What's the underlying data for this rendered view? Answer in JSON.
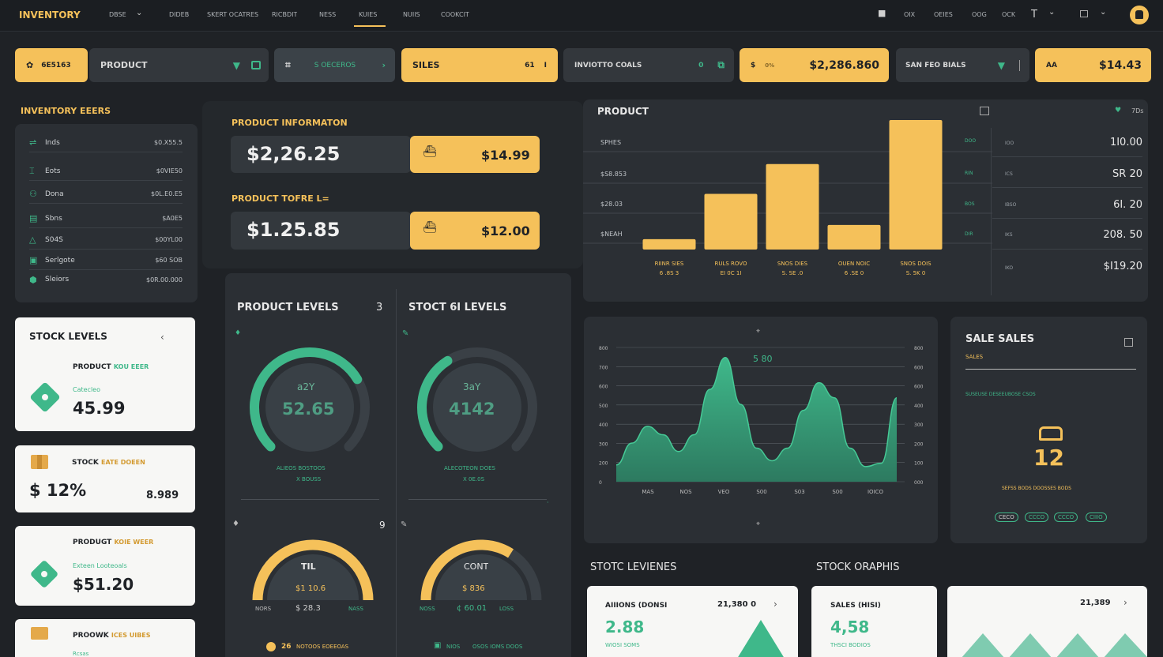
{
  "nav": {
    "brand": "INVENTORY",
    "items": [
      "DBSE",
      "DIDEB",
      "SKERT OCATRES",
      "RICBDIT",
      "NESS",
      "KUIES",
      "NUIIS",
      "COOKCIT"
    ],
    "right": [
      "OIX",
      "OEIES",
      "OOG",
      "OCK"
    ],
    "icons": {
      "lock": "lock-icon",
      "filter": "filter-icon",
      "window": "window-icon",
      "chevron": "chevron-down-icon",
      "avatar": "avatar-icon"
    }
  },
  "toolbar": {
    "chip1": "6E5163",
    "product": "PRODUCT",
    "search": "S OECEROS",
    "sales": "SILES",
    "sales_num": "61",
    "sales_mark": "I",
    "goals": "INVIOTTO COALS",
    "goals_num": "0",
    "currency_label": "$",
    "currency_sub": "0%",
    "amount": "$2,286.860",
    "fiscal": "SAN FEO BIALS",
    "last_label": "AA",
    "last_amount": "$14.43"
  },
  "inventory": {
    "title": "INVENTORY EEERS",
    "rows": [
      {
        "label": "Inds",
        "value": "$0.X55.5"
      },
      {
        "label": "Eots",
        "value": "$0VIE50"
      },
      {
        "label": "Dona",
        "value": "$0L.E0.E5"
      },
      {
        "label": "Sbns",
        "value": "$A0E5"
      },
      {
        "label": "S04S",
        "value": "$00YL00"
      },
      {
        "label": "Serlgote",
        "value": "$60 SOB"
      },
      {
        "label": "Sleiors",
        "value": "$0R.00.000"
      }
    ]
  },
  "stock_card": {
    "title": "STOCK LEVELS",
    "arrow": "‹",
    "product": "PRODUCT",
    "product_sub": "KOU EEER",
    "label": "Catecleo",
    "value": "45.99"
  },
  "stock_pct": {
    "label": "STOCK",
    "label_sub": "EATE DOEEN",
    "value": "$ 12%",
    "right": "8.989"
  },
  "product_card": {
    "title": "PRODUGT",
    "title_sub": "KOIE WEER",
    "label": "Exteen",
    "label_sub": "Looteoals",
    "value": "$51.20"
  },
  "product_card2": {
    "title": "PROOWK",
    "title_sub": "ICES UIBES",
    "sub": "Rcsas"
  },
  "product_info": {
    "title": "PRODUCT INFORMATON",
    "amount1": "$2,26.25",
    "chip1": "$14.99",
    "title2": "PRODUCT TOFRE L=",
    "amount2": "$1.25.85",
    "chip2": "$12.00"
  },
  "gauges": {
    "title1": "PRODUCT LEVELS",
    "title1_num": "3",
    "title2": "STOCT 6I LEVELS",
    "g1": {
      "label": "a2Y",
      "value": "52.65",
      "sub": "ALIEOS BOSTOOS",
      "sub2": "X BOUSS",
      "pct": 0.72
    },
    "g2": {
      "label": "3aY",
      "value": "4142",
      "sub": "ALECOTEON DOES",
      "sub2": "X 0E.0S",
      "pct": 0.38
    },
    "g3": {
      "label": "TIL",
      "value": "$1 10.6",
      "left": "NORS",
      "mid": "$ 28.3",
      "right": "NASS",
      "corner": "9",
      "pct": 0.5
    },
    "g4": {
      "label": "CONT",
      "value": "$ 836",
      "left": "NOSS",
      "mid": "¢ 60.01",
      "right": "LOSS",
      "pct": 0.68
    },
    "footer1_num": "26",
    "footer1": "NOTOOS EOEEOAS",
    "footer2": "NIOS",
    "footer2b": "OSOS IOMS DOOS"
  },
  "product_chart": {
    "title": "PRODUCT",
    "legend": "7Ds",
    "row_labels": [
      "SPHES",
      "$S8.853",
      "$28.03",
      "$NEAH"
    ],
    "right_values": [
      "1I0.00",
      "SR 20",
      "6I. 20",
      "208. 50"
    ],
    "right_last": "$I19.20",
    "right_codes": [
      "DOO",
      "RIN",
      "BOS",
      "DIR"
    ],
    "right_mid": [
      "IOO",
      "ICS",
      "IBSO",
      "IKS",
      "IKO"
    ],
    "chart_data": {
      "type": "bar",
      "categories": [
        "RIINR SIES",
        "RULS ROVO",
        "SNOS DIES",
        "OUEN NOIC",
        "SNOS DOIS"
      ],
      "category_sub": [
        "6 .8S 3",
        "EI 0C 1I",
        "S. SE .0",
        "6 .SE 0",
        "S. 5K 0"
      ],
      "values": [
        8,
        43,
        66,
        19,
        100
      ],
      "ylim": [
        0,
        100
      ]
    }
  },
  "area_chart": {
    "label": "5 80",
    "left_ticks": [
      "800",
      "700",
      "600",
      "500",
      "400",
      "300",
      "200",
      "0"
    ],
    "right_ticks": [
      "800",
      "600",
      "600",
      "400",
      "300",
      "200",
      "100",
      "000"
    ],
    "x_labels": [
      "MAS",
      "NOS",
      "VEO",
      "S00",
      "S03",
      "S00",
      "IOICO"
    ],
    "chart_data": {
      "type": "area",
      "x": [
        0,
        1,
        2,
        3,
        4,
        5,
        6,
        7,
        8,
        9,
        10,
        11,
        12,
        13,
        14,
        15,
        16,
        17,
        18
      ],
      "values": [
        20,
        46,
        66,
        56,
        36,
        56,
        110,
        148,
        92,
        40,
        25,
        40,
        85,
        118,
        100,
        40,
        18,
        22,
        100
      ],
      "ylim": [
        0,
        160
      ]
    }
  },
  "sale_sales": {
    "title": "SALE SALES",
    "sub": "SALES",
    "small": "SUSEUSE DESEEUBOSE CSOS",
    "value": "12",
    "footer": "SEFSS BODS DOOSSES BODS",
    "pills": [
      "CECO",
      "CCCO",
      "CCCO",
      "CIIIO"
    ]
  },
  "bottom": {
    "title1": "STOTC LEVIENES",
    "title2": "STOCK ORAPHIS",
    "c1": {
      "label": "AIIIONS (DONSI",
      "num": "21,380 0",
      "value": "2.88",
      "sub": "WIOSI SOMS"
    },
    "c2": {
      "label": "SALES (HISI)",
      "value": "4,58",
      "sub": "THSCI BODIOS"
    },
    "c3": {
      "num": "21,389"
    }
  },
  "colors": {
    "accent": "#f5c15a",
    "green": "#3fb88a",
    "bg": "#1f2226",
    "panel": "#2b2f34"
  }
}
